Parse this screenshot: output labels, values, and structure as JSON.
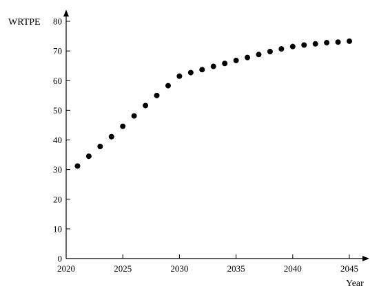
{
  "chart_data": {
    "type": "scatter",
    "title": "",
    "xlabel": "Year",
    "ylabel": "WRTPE",
    "xlim": [
      2020,
      2045
    ],
    "ylim": [
      0,
      80
    ],
    "xticks": [
      2020,
      2025,
      2030,
      2035,
      2040,
      2045
    ],
    "yticks": [
      0,
      10,
      20,
      30,
      40,
      50,
      60,
      70,
      80
    ],
    "grid": false,
    "legend": "none",
    "marker_color": "#000000",
    "series": [
      {
        "x": [
          2021,
          2022,
          2023,
          2024,
          2025,
          2026,
          2027,
          2028,
          2029,
          2030,
          2031,
          2032,
          2033,
          2034,
          2035,
          2036,
          2037,
          2038,
          2039,
          2040,
          2041,
          2042,
          2043,
          2044,
          2045
        ],
        "y": [
          31.2,
          34.5,
          37.8,
          41.1,
          44.6,
          48.1,
          51.6,
          55.0,
          58.3,
          61.5,
          62.7,
          63.7,
          64.8,
          65.8,
          66.8,
          67.8,
          68.8,
          69.8,
          70.7,
          71.5,
          72.0,
          72.4,
          72.8,
          73.0,
          73.3
        ]
      }
    ]
  }
}
